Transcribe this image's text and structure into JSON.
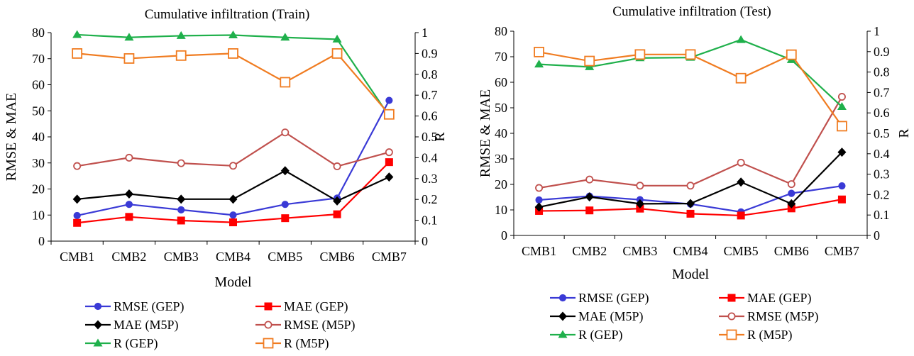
{
  "charts": [
    {
      "type": "line",
      "title": "Cumulative infiltration  (Train)",
      "xlabel": "Model",
      "ylabel_left": "RMSE & MAE",
      "ylabel_right": "R",
      "categories": [
        "CMB1",
        "CMB2",
        "CMB3",
        "CMB4",
        "CMB5",
        "CMB6",
        "CMB7"
      ],
      "ylim_left": [
        0,
        80
      ],
      "yticks_left": [
        "0",
        "10",
        "20",
        "30",
        "40",
        "50",
        "60",
        "70",
        "80"
      ],
      "ylim_right": [
        0,
        1
      ],
      "yticks_right": [
        "0",
        "0.1",
        "0.2",
        "0.3",
        "0.4",
        "0.5",
        "0.6",
        "0.7",
        "0.8",
        "0.9",
        "1"
      ],
      "series": [
        {
          "name": "RMSE (GEP)",
          "axis": "left",
          "color": "#3a3ad6",
          "marker": "circle",
          "values": [
            9.8,
            14.1,
            12.0,
            10.0,
            14.1,
            16.5,
            54.0
          ]
        },
        {
          "name": "MAE (GEP)",
          "axis": "left",
          "color": "#ff0000",
          "marker": "square",
          "values": [
            7.0,
            9.3,
            7.9,
            7.2,
            8.8,
            10.3,
            30.3
          ]
        },
        {
          "name": "MAE (M5P)",
          "axis": "left",
          "color": "#000000",
          "marker": "diamond",
          "values": [
            16.1,
            18.1,
            16.1,
            16.1,
            27.0,
            15.4,
            24.6
          ]
        },
        {
          "name": "RMSE (M5P)",
          "axis": "left",
          "color": "#c0504d",
          "marker": "circle-open",
          "values": [
            28.8,
            32.0,
            29.9,
            28.9,
            41.7,
            28.7,
            34.1
          ]
        },
        {
          "name": "R (GEP)",
          "axis": "right",
          "color": "#1fb04b",
          "marker": "triangle",
          "values": [
            0.99,
            0.977,
            0.985,
            0.988,
            0.977,
            0.968,
            0.6
          ]
        },
        {
          "name": "R (M5P)",
          "axis": "right",
          "color": "#f07c21",
          "marker": "square-open",
          "values": [
            0.9,
            0.876,
            0.89,
            0.9,
            0.762,
            0.9,
            0.608
          ]
        }
      ]
    },
    {
      "type": "line",
      "title": "Cumulative infiltration  (Test)",
      "xlabel": "Model",
      "ylabel_left": "RMSE & MAE",
      "ylabel_right": "R",
      "categories": [
        "CMB1",
        "CMB2",
        "CMB3",
        "CMB4",
        "CMB5",
        "CMB6",
        "CMB7"
      ],
      "ylim_left": [
        0,
        80
      ],
      "yticks_left": [
        "0",
        "10",
        "20",
        "30",
        "40",
        "50",
        "60",
        "70",
        "80"
      ],
      "ylim_right": [
        0,
        1
      ],
      "yticks_right": [
        "0",
        "0.1",
        "0.2",
        "0.3",
        "0.4",
        "0.5",
        "0.6",
        "0.7",
        "0.8",
        "0.9",
        "1"
      ],
      "series": [
        {
          "name": "RMSE (GEP)",
          "axis": "left",
          "color": "#3a3ad6",
          "marker": "circle",
          "values": [
            13.9,
            15.4,
            14.0,
            12.3,
            9.2,
            16.5,
            19.4
          ]
        },
        {
          "name": "MAE (GEP)",
          "axis": "left",
          "color": "#ff0000",
          "marker": "square",
          "values": [
            9.6,
            9.8,
            10.5,
            8.5,
            7.8,
            10.6,
            14.1
          ]
        },
        {
          "name": "MAE (M5P)",
          "axis": "left",
          "color": "#000000",
          "marker": "diamond",
          "values": [
            11.1,
            15.1,
            12.4,
            12.5,
            20.9,
            12.4,
            32.6
          ]
        },
        {
          "name": "RMSE (M5P)",
          "axis": "left",
          "color": "#c0504d",
          "marker": "circle-open",
          "values": [
            18.6,
            21.9,
            19.5,
            19.5,
            28.5,
            20.1,
            54.3
          ]
        },
        {
          "name": "R (GEP)",
          "axis": "right",
          "color": "#1fb04b",
          "marker": "triangle",
          "values": [
            0.838,
            0.825,
            0.869,
            0.871,
            0.958,
            0.86,
            0.63
          ]
        },
        {
          "name": "R (M5P)",
          "axis": "right",
          "color": "#f07c21",
          "marker": "square-open",
          "values": [
            0.898,
            0.854,
            0.886,
            0.886,
            0.77,
            0.885,
            0.535
          ]
        }
      ]
    }
  ]
}
